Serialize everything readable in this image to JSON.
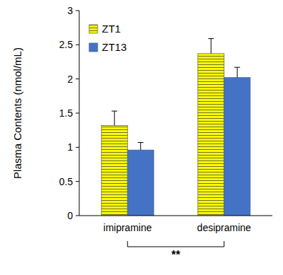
{
  "chart_data": {
    "type": "bar",
    "y_label": "Plasma Contents (nmol/mL)",
    "categories": [
      "imipramine",
      "desipramine"
    ],
    "series": [
      {
        "name": "ZT1",
        "color": "#ffff00",
        "values": [
          1.32,
          2.37
        ],
        "errors": [
          0.21,
          0.22
        ]
      },
      {
        "name": "ZT13",
        "color": "#4472c4",
        "values": [
          0.96,
          2.02
        ],
        "errors": [
          0.11,
          0.15
        ]
      }
    ],
    "ylim": [
      0,
      3
    ],
    "yticks": [
      0,
      0.5,
      1,
      1.5,
      2,
      2.5,
      3
    ],
    "grid": false,
    "legend": "top-left",
    "annotation": "**"
  }
}
